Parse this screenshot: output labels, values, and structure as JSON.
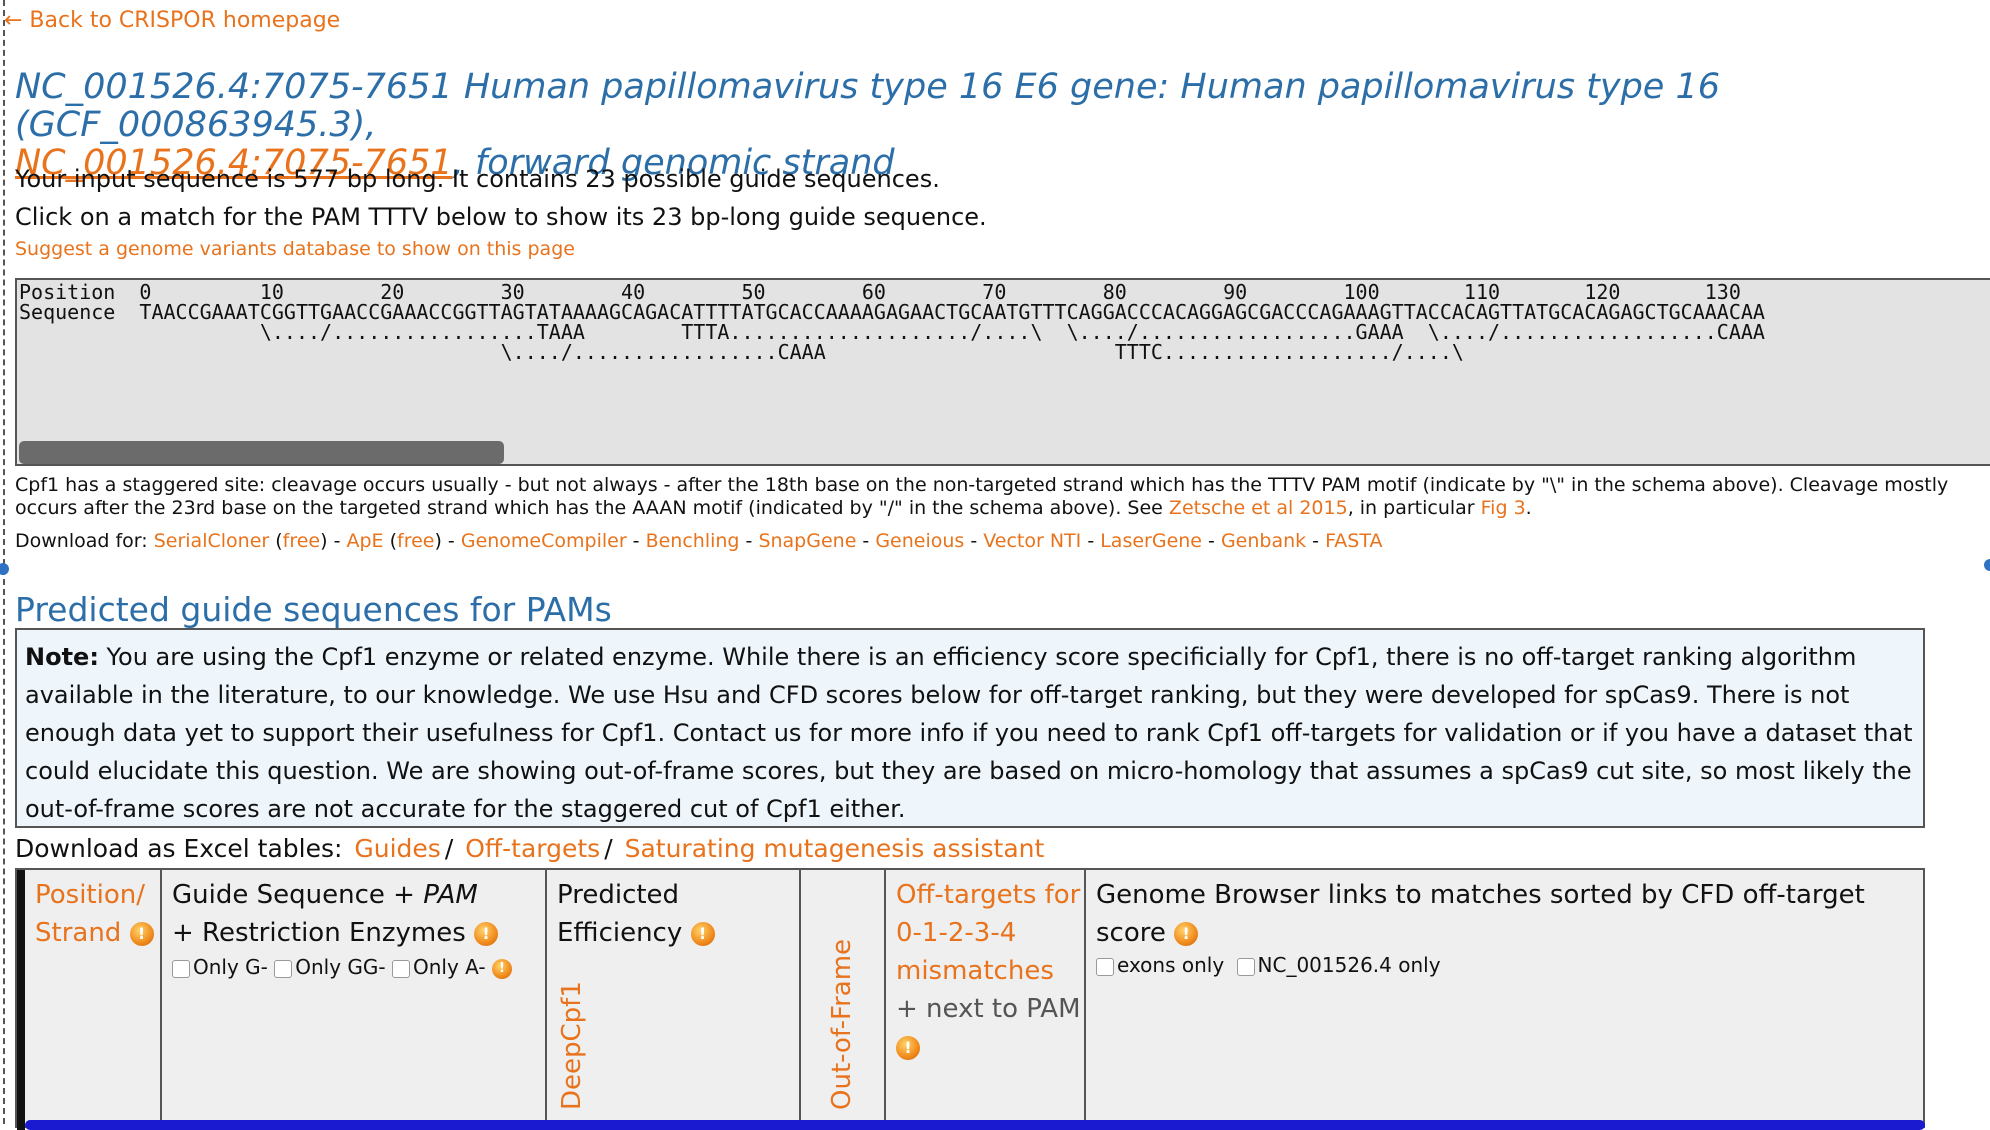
{
  "nav": {
    "back_label": "← Back to CRISPOR homepage"
  },
  "title": {
    "main": "NC_001526.4:7075-7651 Human papillomavirus type 16 E6 gene: Human papillomavirus type 16 (GCF_000863945.3),",
    "link": "NC_001526.4:7075-7651",
    "suffix": ", forward genomic strand"
  },
  "info": {
    "line1": "Your input sequence is 577 bp long. It contains 23 possible guide sequences.",
    "line2": "Click on a match for the PAM TTTV below to show its 23 bp-long guide sequence.",
    "suggest": "Suggest a genome variants database to show on this page"
  },
  "sequence_view": {
    "position_row": "Position  0         10        20        30        40        50        60        70        80        90        100       110       120       130",
    "sequence_row": "Sequence  TAACCGAAATCGGTTGAACCGAAACCGGTTAGTATAAAAGCAGACATTTTATGCACCAAAAGAGAACTGCAATGTTTCAGGACCCACAGGAGCGACCCAGAAAGTTACCACAGTTATGCACAGAGCTGCAAACAA",
    "match_row1": "                    \\..../.................TAAA        TTTA..................../....\\  \\..../..................GAAA  \\..../..................CAAA",
    "match_row2": "                                        \\..../.................CAAA                        TTTC.................../....\\"
  },
  "cleavage_note": {
    "text1": "Cpf1 has a staggered site: cleavage occurs usually - but not always - after the 18th base on the non-targeted strand which has the TTTV PAM motif (indicate by \"\\\" in the schema above). Cleavage mostly",
    "text2": "occurs after the 23rd base on the targeted strand which has the AAAN motif (indicated by \"/\" in the schema above). See ",
    "link1": "Zetsche et al 2015",
    "text3": ", in particular ",
    "link2": "Fig 3",
    "text4": "."
  },
  "download": {
    "label": "Download for: ",
    "serialcloner": "SerialCloner",
    "free1": "free",
    "ape": "ApE",
    "free2": "free",
    "genomecompiler": "GenomeCompiler",
    "benchling": "Benchling",
    "snapgene": "SnapGene",
    "geneious": "Geneious",
    "vectornti": "Vector NTI",
    "lasergene": "LaserGene",
    "genbank": "Genbank",
    "fasta": "FASTA"
  },
  "section": {
    "heading": "Predicted guide sequences for PAMs"
  },
  "note": {
    "label": "Note:",
    "text": " You are using the Cpf1 enzyme or related enzyme. While there is an efficiency score specificially for Cpf1, there is no off-target ranking algorithm available in the literature, to our knowledge. We use Hsu and CFD scores below for off-target ranking, but they were developed for spCas9. There is not enough data yet to support their usefulness for Cpf1. Contact us for more info if you need to rank Cpf1 off-targets for validation or if you have a dataset that could elucidate this question. We are showing out-of-frame scores, but they are based on micro-homology that assumes a spCas9 cut site, so most likely the out-of-frame scores are not accurate for the staggered cut of Cpf1 either."
  },
  "excel": {
    "label": "Download as Excel tables: ",
    "guides": "Guides",
    "offtargets": "Off-targets",
    "saturating": "Saturating mutagenesis assistant",
    "slash": "/"
  },
  "table": {
    "col_position_1": "Position/",
    "col_position_2": "Strand",
    "col_guide_1": "Guide Sequence + ",
    "col_guide_pam": "PAM",
    "col_guide_2": "+ Restriction Enzymes",
    "only_g": "Only G-",
    "only_gg": "Only GG-",
    "only_a": "Only A-",
    "col_pred_1": "Predicted",
    "col_pred_2": "Efficiency",
    "deepcpf1": "DeepCpf1",
    "out_of_frame": "Out-of-Frame",
    "col_off_1": "Off-targets for",
    "col_off_2": "0-1-2-3-4",
    "col_off_3": "mismatches",
    "col_off_4": "+ next to PAM",
    "col_genome": "Genome Browser links to matches sorted by CFD off-target score",
    "exons_only": "exons only",
    "nc_only": "NC_001526.4 only"
  },
  "colors": {
    "accent": "#e8731c",
    "heading": "#2c6ea8",
    "note_bg": "#eef6fc",
    "seq_bg": "#e3e3e3"
  },
  "icons": [
    "warning-icon",
    "checkbox-icon",
    "arrow-left-icon"
  ]
}
